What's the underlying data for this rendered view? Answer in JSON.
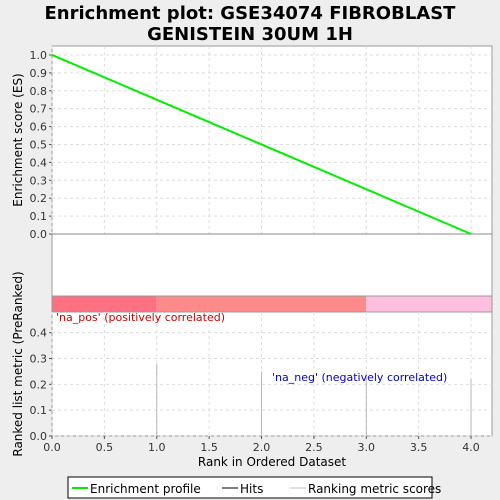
{
  "chart_data": {
    "type": "line",
    "title": "Enrichment plot: GSE34074 FIBROBLAST\nGENISTEIN 30UM 1H",
    "top_panel": {
      "ylabel": "Enrichment score (ES)",
      "ylim": [
        0.0,
        1.05
      ],
      "yticks": [
        "0.0",
        "0.1",
        "0.2",
        "0.3",
        "0.4",
        "0.5",
        "0.6",
        "0.7",
        "0.8",
        "0.9",
        "1.0"
      ],
      "series": [
        {
          "name": "Enrichment profile",
          "color": "#00ee00",
          "x": [
            0.0,
            4.0
          ],
          "y": [
            1.0,
            0.0
          ]
        }
      ],
      "grid": true
    },
    "hits": {
      "positions": [
        0,
        1,
        2,
        3,
        4
      ],
      "color": "#000000"
    },
    "color_bar": {
      "segments": [
        {
          "from": 0.0,
          "to": 1.0,
          "color": "#ff7080"
        },
        {
          "from": 1.0,
          "to": 3.0,
          "color": "#ff8a8a"
        },
        {
          "from": 3.0,
          "to": 4.2,
          "color": "#ffc0e0"
        }
      ]
    },
    "bottom_panel": {
      "ylabel": "Ranked list metric (PreRanked)",
      "ylim": [
        0.0,
        0.48
      ],
      "yticks": [
        "0.0",
        "0.1",
        "0.2",
        "0.3",
        "0.4"
      ],
      "bars": [
        {
          "x": 1.0,
          "value": 0.28
        },
        {
          "x": 2.0,
          "value": 0.25
        },
        {
          "x": 3.0,
          "value": 0.24
        },
        {
          "x": 4.0,
          "value": 0.22
        }
      ],
      "annotations": {
        "pos": {
          "text": "'na_pos' (positively correlated)",
          "color": "#cc0000"
        },
        "neg": {
          "text": "'na_neg' (negatively correlated)",
          "color": "#0000cc"
        }
      },
      "grid": true
    },
    "xlabel": "Rank in Ordered Dataset",
    "xlim": [
      0.0,
      4.2
    ],
    "xticks": [
      "0.0",
      "0.5",
      "1.0",
      "1.5",
      "2.0",
      "2.5",
      "3.0",
      "3.5",
      "4.0"
    ],
    "legend": {
      "placement": "bottom",
      "items": [
        {
          "label": "Enrichment profile",
          "color": "#00ee00"
        },
        {
          "label": "Hits",
          "color": "#000000"
        },
        {
          "label": "Ranking metric scores",
          "color": "#c0c0c0"
        }
      ]
    }
  }
}
